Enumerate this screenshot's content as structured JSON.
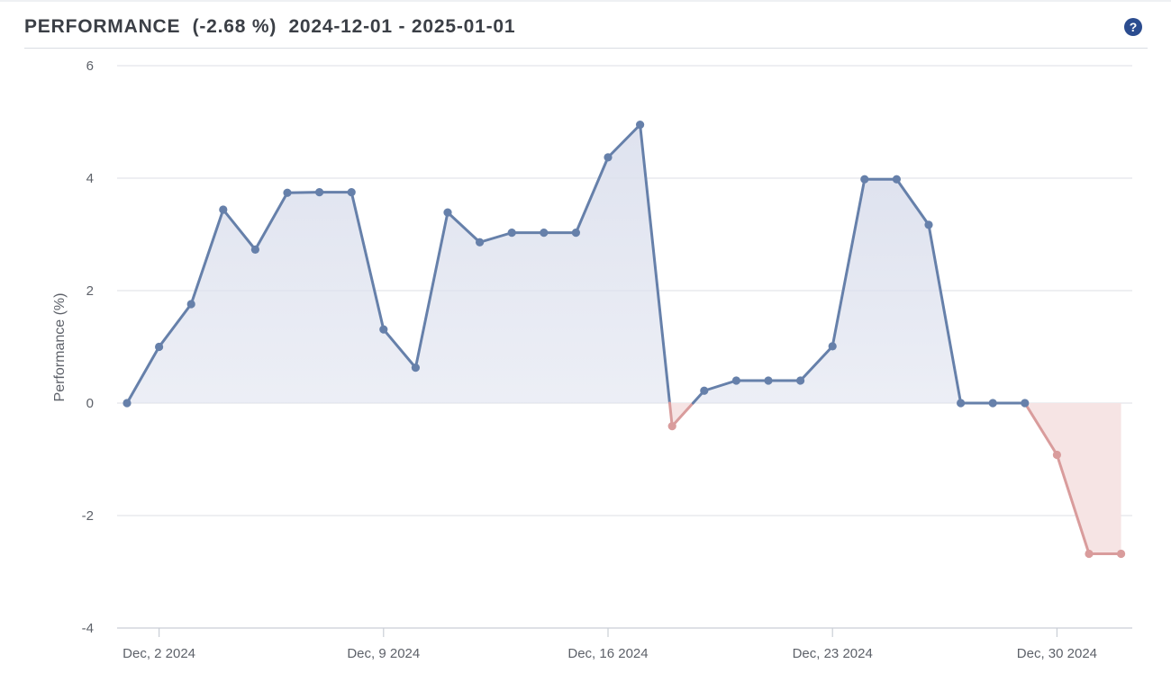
{
  "header": {
    "title": "PERFORMANCE",
    "change": "(-2.68 %)",
    "range": "2024-12-01 - 2025-01-01",
    "help_icon": "question-circle-icon",
    "help_glyph": "?"
  },
  "colors": {
    "positive_line": "#6680aa",
    "positive_fill": "#dde1ee",
    "negative_line": "#d99c9c",
    "negative_fill": "#f6e4e4",
    "grid": "#e3e5ea",
    "title": "#3b3f46",
    "help_icon_bg": "#2b4c8f"
  },
  "chart_data": {
    "type": "area",
    "title": "",
    "xlabel": "",
    "ylabel": "Performance (%)",
    "ylim": [
      -4,
      6
    ],
    "yticks": [
      -4,
      -2,
      0,
      2,
      4,
      6
    ],
    "y_tick_labels": [
      "-4",
      "-2",
      "0",
      "2",
      "4",
      "6"
    ],
    "x_tick_labels": [
      "Dec, 2 2024",
      "Dec, 9 2024",
      "Dec, 16 2024",
      "Dec, 23 2024",
      "Dec, 30 2024"
    ],
    "x_tick_dates": [
      "2024-12-02",
      "2024-12-09",
      "2024-12-16",
      "2024-12-23",
      "2024-12-30"
    ],
    "grid": true,
    "legend": false,
    "baseline": 0,
    "series": [
      {
        "x": [
          "2024-12-01",
          "2024-12-02",
          "2024-12-03",
          "2024-12-04",
          "2024-12-05",
          "2024-12-06",
          "2024-12-07",
          "2024-12-08",
          "2024-12-09",
          "2024-12-10",
          "2024-12-11",
          "2024-12-12",
          "2024-12-13",
          "2024-12-14",
          "2024-12-15",
          "2024-12-16",
          "2024-12-17",
          "2024-12-18",
          "2024-12-19",
          "2024-12-20",
          "2024-12-21",
          "2024-12-22",
          "2024-12-23",
          "2024-12-24",
          "2024-12-25",
          "2024-12-26",
          "2024-12-27",
          "2024-12-28",
          "2024-12-29",
          "2024-12-30",
          "2024-12-31",
          "2025-01-01"
        ],
        "values": [
          0,
          1.0,
          1.76,
          3.44,
          2.73,
          3.74,
          3.75,
          3.75,
          1.31,
          0.63,
          3.39,
          2.86,
          3.03,
          3.03,
          3.03,
          4.37,
          4.95,
          -0.41,
          0.22,
          0.4,
          0.4,
          0.4,
          1.01,
          3.98,
          3.98,
          3.17,
          0,
          0,
          0,
          -0.92,
          -2.68,
          -2.68
        ]
      }
    ]
  }
}
